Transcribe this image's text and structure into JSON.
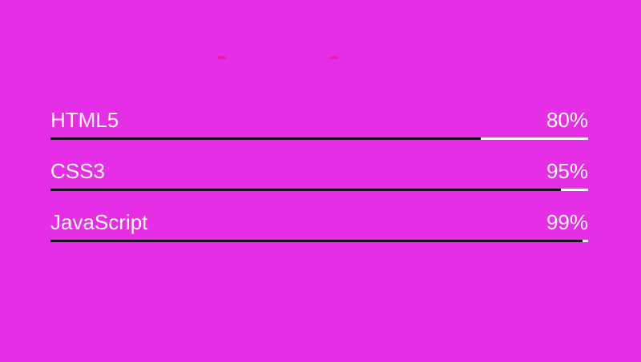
{
  "skills": [
    {
      "label": "HTML5",
      "percent_text": "80%",
      "value": 0.8
    },
    {
      "label": "CSS3",
      "percent_text": "95%",
      "value": 0.95
    },
    {
      "label": "JavaScript",
      "percent_text": "99%",
      "value": 0.99
    }
  ],
  "colors": {
    "background": "#e62ee6",
    "text": "#ffffff",
    "track": "#ffffff",
    "fill": "#111111",
    "accent": "#f7169b"
  }
}
